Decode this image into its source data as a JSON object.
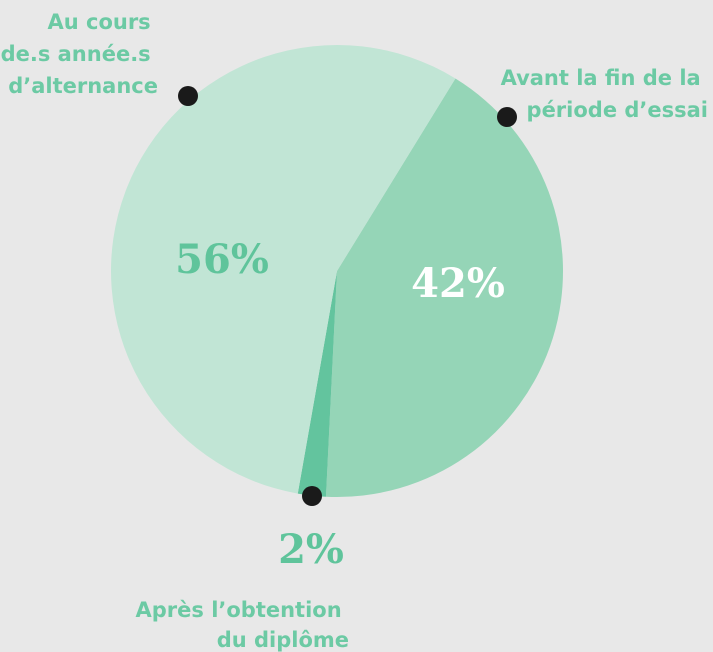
{
  "chart_data": {
    "type": "pie",
    "categories": [
      "Avant la fin de la période d’essai",
      "Après l’obtention du diplôme",
      "Au cours de.s année.s d’alternance"
    ],
    "values": [
      42,
      2,
      56
    ],
    "value_labels": [
      "42%",
      "2%",
      "56%"
    ],
    "colors": [
      "#95d5b7",
      "#63c49e",
      "#c1e5d5"
    ]
  }
}
